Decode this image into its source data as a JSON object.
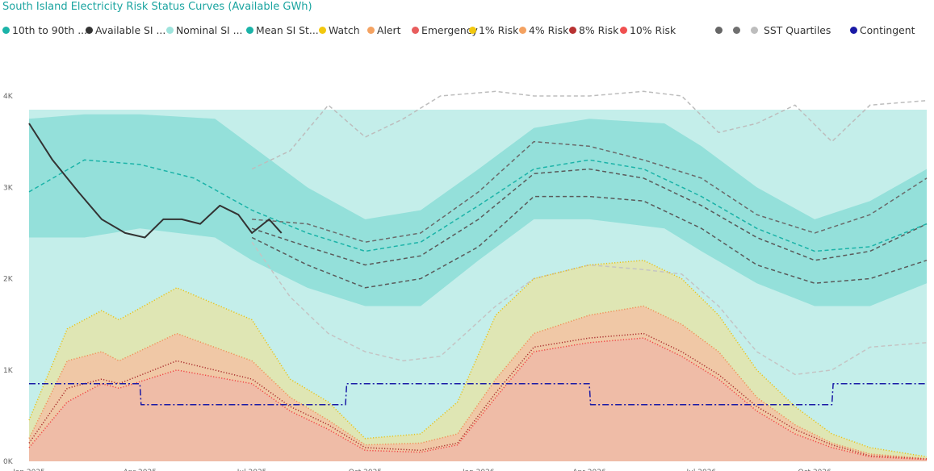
{
  "chart_data": {
    "type": "area",
    "title": "South Island Electricity Risk Status Curves (Available GWh)",
    "ylim": [
      0,
      4000
    ],
    "x_range": [
      "2025-01-01",
      "2026-12-31"
    ],
    "y_ticks": [
      {
        "v": 0,
        "label": "0K"
      },
      {
        "v": 1000,
        "label": "1K"
      },
      {
        "v": 2000,
        "label": "2K"
      },
      {
        "v": 3000,
        "label": "3K"
      },
      {
        "v": 4000,
        "label": "4K"
      }
    ],
    "x_ticks": [
      {
        "date": "2025-01-01",
        "label": "Jan 2025"
      },
      {
        "date": "2025-04-01",
        "label": "Apr 2025"
      },
      {
        "date": "2025-07-01",
        "label": "Jul 2025"
      },
      {
        "date": "2025-10-01",
        "label": "Oct 2025"
      },
      {
        "date": "2026-01-01",
        "label": "Jan 2026"
      },
      {
        "date": "2026-04-01",
        "label": "Apr 2026"
      },
      {
        "date": "2026-07-01",
        "label": "Jul 2026"
      },
      {
        "date": "2026-10-01",
        "label": "Oct 2026"
      }
    ],
    "legend": [
      {
        "label": "10th to 90th ...",
        "color": "#1bb3a8"
      },
      {
        "label": "Available SI ...",
        "color": "#333333"
      },
      {
        "label": "Nominal SI ...",
        "color": "#9ee3dc"
      },
      {
        "label": "Mean SI St...",
        "color": "#1bb3a8"
      },
      {
        "label": "Watch",
        "color": "#f2c80f"
      },
      {
        "label": "Alert",
        "color": "#f4a261"
      },
      {
        "label": "Emergency",
        "color": "#e85d5d"
      },
      {
        "label": "1% Risk",
        "color": "#f2c80f"
      },
      {
        "label": "4% Risk",
        "color": "#f4a261"
      },
      {
        "label": "8% Risk",
        "color": "#b83232"
      },
      {
        "label": "10% Risk",
        "color": "#f05050"
      },
      {
        "label": "SST Quartiles",
        "color": "#9a9a9a"
      },
      {
        "label": "Contingent",
        "color": "#1a1aa6"
      }
    ],
    "series": [
      {
        "key": "nominal",
        "name": "Nominal SI ...",
        "color": "#c4eeea",
        "x": [
          "2025-01-01",
          "2025-06-01",
          "2025-06-02",
          "2025-09-01",
          "2025-10-01",
          "2026-01-01",
          "2026-02-01",
          "2026-08-01",
          "2026-12-31"
        ],
        "y": [
          3850,
          3850,
          3850,
          3850,
          3850,
          3850,
          3850,
          3850,
          3850
        ]
      },
      {
        "key": "band",
        "name": "10th to 90th ...",
        "color": "#94e0da",
        "x": [
          "2025-01-01",
          "2025-02-15",
          "2025-04-01",
          "2025-06-01",
          "2025-07-01",
          "2025-08-15",
          "2025-10-01",
          "2025-11-15",
          "2026-01-01",
          "2026-02-15",
          "2026-04-01",
          "2026-06-01",
          "2026-07-01",
          "2026-08-15",
          "2026-10-01",
          "2026-11-15",
          "2026-12-31"
        ],
        "upper": [
          3750,
          3800,
          3800,
          3750,
          3450,
          3000,
          2650,
          2750,
          3200,
          3650,
          3750,
          3700,
          3450,
          3000,
          2650,
          2850,
          3200
        ],
        "lower": [
          2450,
          2450,
          2550,
          2450,
          2200,
          1900,
          1700,
          1700,
          2200,
          2650,
          2650,
          2550,
          2300,
          1950,
          1700,
          1700,
          1950
        ]
      },
      {
        "key": "watch",
        "name": "Watch",
        "color": "#dfe6b4",
        "x": [
          "2025-01-01",
          "2025-02-01",
          "2025-03-01",
          "2025-03-15",
          "2025-05-01",
          "2025-07-01",
          "2025-08-01",
          "2025-09-01",
          "2025-10-01",
          "2025-11-15",
          "2025-12-15",
          "2026-01-15",
          "2026-02-15",
          "2026-04-01",
          "2026-05-15",
          "2026-06-15",
          "2026-07-15",
          "2026-08-15",
          "2026-09-15",
          "2026-10-15",
          "2026-11-15",
          "2026-12-31"
        ],
        "y": [
          450,
          1450,
          1650,
          1550,
          1900,
          1550,
          900,
          650,
          250,
          300,
          650,
          1600,
          2000,
          2150,
          2200,
          2000,
          1600,
          1000,
          600,
          300,
          150,
          50
        ]
      },
      {
        "key": "alert",
        "name": "Alert",
        "color": "#f0c8a6",
        "x": [
          "2025-01-01",
          "2025-02-01",
          "2025-03-01",
          "2025-03-15",
          "2025-05-01",
          "2025-07-01",
          "2025-08-01",
          "2025-09-01",
          "2025-10-01",
          "2025-11-15",
          "2025-12-15",
          "2026-01-15",
          "2026-02-15",
          "2026-04-01",
          "2026-05-15",
          "2026-06-15",
          "2026-07-15",
          "2026-08-15",
          "2026-09-15",
          "2026-10-15",
          "2026-11-15",
          "2026-12-31"
        ],
        "y": [
          250,
          1100,
          1200,
          1100,
          1400,
          1100,
          700,
          450,
          180,
          200,
          300,
          900,
          1400,
          1600,
          1700,
          1500,
          1200,
          700,
          400,
          200,
          80,
          30
        ]
      },
      {
        "key": "emergency",
        "name": "Emergency",
        "color": "#efbca7",
        "x": [
          "2025-01-01",
          "2025-02-01",
          "2025-03-01",
          "2025-03-15",
          "2025-05-01",
          "2025-07-01",
          "2025-08-01",
          "2025-09-01",
          "2025-10-01",
          "2025-11-15",
          "2025-12-15",
          "2026-01-15",
          "2026-02-15",
          "2026-04-01",
          "2026-05-15",
          "2026-06-15",
          "2026-07-15",
          "2026-08-15",
          "2026-09-15",
          "2026-10-15",
          "2026-11-15",
          "2026-12-31"
        ],
        "y": [
          150,
          650,
          850,
          800,
          1000,
          850,
          550,
          350,
          120,
          100,
          180,
          700,
          1200,
          1300,
          1350,
          1150,
          900,
          550,
          300,
          150,
          50,
          20
        ]
      },
      {
        "key": "risk1",
        "name": "1% Risk",
        "color": "#e8c31a",
        "style": "dotted",
        "x": [
          "2025-01-01",
          "2025-02-01",
          "2025-03-01",
          "2025-03-15",
          "2025-05-01",
          "2025-07-01",
          "2025-08-01",
          "2025-09-01",
          "2025-10-01",
          "2025-11-15",
          "2025-12-15",
          "2026-01-15",
          "2026-02-15",
          "2026-04-01",
          "2026-05-15",
          "2026-06-15",
          "2026-07-15",
          "2026-08-15",
          "2026-09-15",
          "2026-10-15",
          "2026-11-15",
          "2026-12-31"
        ],
        "y": [
          450,
          1450,
          1650,
          1550,
          1900,
          1550,
          900,
          650,
          250,
          300,
          650,
          1600,
          2000,
          2150,
          2200,
          2000,
          1600,
          1000,
          600,
          300,
          150,
          50
        ]
      },
      {
        "key": "risk4",
        "name": "4% Risk",
        "color": "#ef8f57",
        "style": "dotted",
        "x": [
          "2025-01-01",
          "2025-02-01",
          "2025-03-01",
          "2025-03-15",
          "2025-05-01",
          "2025-07-01",
          "2025-08-01",
          "2025-09-01",
          "2025-10-01",
          "2025-11-15",
          "2025-12-15",
          "2026-01-15",
          "2026-02-15",
          "2026-04-01",
          "2026-05-15",
          "2026-06-15",
          "2026-07-15",
          "2026-08-15",
          "2026-09-15",
          "2026-10-15",
          "2026-11-15",
          "2026-12-31"
        ],
        "y": [
          250,
          1100,
          1200,
          1100,
          1400,
          1100,
          700,
          450,
          180,
          200,
          300,
          900,
          1400,
          1600,
          1700,
          1500,
          1200,
          700,
          400,
          200,
          80,
          30
        ]
      },
      {
        "key": "risk8",
        "name": "8% Risk",
        "color": "#a82c2c",
        "style": "dotted",
        "x": [
          "2025-01-01",
          "2025-02-01",
          "2025-03-01",
          "2025-03-15",
          "2025-05-01",
          "2025-07-01",
          "2025-08-01",
          "2025-09-01",
          "2025-10-01",
          "2025-11-15",
          "2025-12-15",
          "2026-01-15",
          "2026-02-15",
          "2026-04-01",
          "2026-05-15",
          "2026-06-15",
          "2026-07-15",
          "2026-08-15",
          "2026-09-15",
          "2026-10-15",
          "2026-11-15",
          "2026-12-31"
        ],
        "y": [
          200,
          800,
          900,
          850,
          1100,
          900,
          600,
          400,
          150,
          120,
          200,
          750,
          1250,
          1350,
          1400,
          1200,
          950,
          600,
          350,
          180,
          60,
          25
        ]
      },
      {
        "key": "risk10",
        "name": "10% Risk",
        "color": "#f04545",
        "style": "dotted",
        "x": [
          "2025-01-01",
          "2025-02-01",
          "2025-03-01",
          "2025-03-15",
          "2025-05-01",
          "2025-07-01",
          "2025-08-01",
          "2025-09-01",
          "2025-10-01",
          "2025-11-15",
          "2025-12-15",
          "2026-01-15",
          "2026-02-15",
          "2026-04-01",
          "2026-05-15",
          "2026-06-15",
          "2026-07-15",
          "2026-08-15",
          "2026-09-15",
          "2026-10-15",
          "2026-11-15",
          "2026-12-31"
        ],
        "y": [
          150,
          650,
          850,
          800,
          1000,
          850,
          550,
          350,
          120,
          100,
          180,
          700,
          1200,
          1300,
          1350,
          1150,
          900,
          550,
          300,
          150,
          50,
          20
        ]
      },
      {
        "key": "mean",
        "name": "Mean SI St...",
        "color": "#1bb3a8",
        "style": "dashed",
        "x": [
          "2025-01-01",
          "2025-02-15",
          "2025-04-01",
          "2025-05-15",
          "2025-07-01",
          "2025-08-15",
          "2025-10-01",
          "2025-11-15",
          "2026-01-01",
          "2026-02-15",
          "2026-04-01",
          "2026-05-15",
          "2026-07-01",
          "2026-08-15",
          "2026-10-01",
          "2026-11-15",
          "2026-12-31"
        ],
        "y": [
          2950,
          3300,
          3250,
          3100,
          2750,
          2500,
          2300,
          2400,
          2800,
          3200,
          3300,
          3200,
          2900,
          2550,
          2300,
          2350,
          2600
        ]
      },
      {
        "key": "q1",
        "name": "SST Quartiles",
        "color": "#6a6a6a",
        "style": "dashed",
        "x": [
          "2025-07-01",
          "2025-08-15",
          "2025-10-01",
          "2025-11-15",
          "2026-01-01",
          "2026-02-15",
          "2026-04-01",
          "2026-05-15",
          "2026-07-01",
          "2026-08-15",
          "2026-10-01",
          "2026-11-15",
          "2026-12-31"
        ],
        "y": [
          2650,
          2600,
          2400,
          2500,
          2950,
          3500,
          3450,
          3300,
          3100,
          2700,
          2500,
          2700,
          3100
        ]
      },
      {
        "key": "q2",
        "name": "SST Quartiles",
        "color": "#5a5a5a",
        "style": "dashed",
        "x": [
          "2025-07-01",
          "2025-08-15",
          "2025-10-01",
          "2025-11-15",
          "2026-01-01",
          "2026-02-15",
          "2026-04-01",
          "2026-05-15",
          "2026-07-01",
          "2026-08-15",
          "2026-10-01",
          "2026-11-15",
          "2026-12-31"
        ],
        "y": [
          2550,
          2350,
          2150,
          2250,
          2650,
          3150,
          3200,
          3100,
          2800,
          2450,
          2200,
          2300,
          2600
        ]
      },
      {
        "key": "q3",
        "name": "SST Quartiles",
        "color": "#5a5a5a",
        "style": "dashed",
        "x": [
          "2025-07-01",
          "2025-08-15",
          "2025-10-01",
          "2025-11-15",
          "2026-01-01",
          "2026-02-15",
          "2026-04-01",
          "2026-05-15",
          "2026-07-01",
          "2026-08-15",
          "2026-10-01",
          "2026-11-15",
          "2026-12-31"
        ],
        "y": [
          2450,
          2150,
          1900,
          2000,
          2350,
          2900,
          2900,
          2850,
          2550,
          2150,
          1950,
          2000,
          2200
        ]
      },
      {
        "key": "q4",
        "name": "SST Quartiles",
        "color": "#bdbdbd",
        "style": "dashed",
        "x": [
          "2025-07-01",
          "2025-08-01",
          "2025-09-01",
          "2025-10-01",
          "2025-11-01",
          "2025-12-01",
          "2026-01-15",
          "2026-02-15",
          "2026-04-01",
          "2026-05-15",
          "2026-06-15",
          "2026-07-15",
          "2026-08-15",
          "2026-09-15",
          "2026-10-15",
          "2026-11-15",
          "2026-12-31"
        ],
        "y": [
          3200,
          3400,
          3900,
          3550,
          3750,
          4000,
          4050,
          4000,
          4000,
          4050,
          4000,
          3600,
          3700,
          3900,
          3500,
          3900,
          3950
        ]
      },
      {
        "key": "q5",
        "name": "SST Quartiles",
        "color": "#c4c4c4",
        "style": "dashed",
        "x": [
          "2025-07-01",
          "2025-08-01",
          "2025-09-01",
          "2025-10-01",
          "2025-11-01",
          "2025-12-01",
          "2026-01-15",
          "2026-02-15",
          "2026-04-01",
          "2026-05-15",
          "2026-06-15",
          "2026-07-15",
          "2026-08-15",
          "2026-09-15",
          "2026-10-15",
          "2026-11-15",
          "2026-12-31"
        ],
        "y": [
          2400,
          1800,
          1400,
          1200,
          1100,
          1150,
          1700,
          2000,
          2150,
          2100,
          2050,
          1700,
          1200,
          950,
          1000,
          1250,
          1300
        ]
      },
      {
        "key": "available",
        "name": "Available SI ...",
        "color": "#333333",
        "style": "solid",
        "x": [
          "2025-01-01",
          "2025-01-20",
          "2025-02-10",
          "2025-03-01",
          "2025-03-20",
          "2025-04-05",
          "2025-04-20",
          "2025-05-05",
          "2025-05-20",
          "2025-06-05",
          "2025-06-20",
          "2025-07-01",
          "2025-07-15",
          "2025-07-25"
        ],
        "y": [
          3700,
          3300,
          2950,
          2650,
          2500,
          2450,
          2650,
          2650,
          2600,
          2800,
          2700,
          2500,
          2650,
          2500
        ]
      },
      {
        "key": "contingent",
        "name": "Contingent",
        "color": "#1a1aa6",
        "style": "dashdot",
        "x": [
          "2025-01-01",
          "2025-04-01",
          "2025-04-02",
          "2025-09-15",
          "2025-09-16",
          "2026-04-01",
          "2026-04-02",
          "2026-10-15",
          "2026-10-16",
          "2026-12-31"
        ],
        "y": [
          850,
          850,
          620,
          620,
          850,
          850,
          620,
          620,
          850,
          850
        ]
      }
    ]
  }
}
